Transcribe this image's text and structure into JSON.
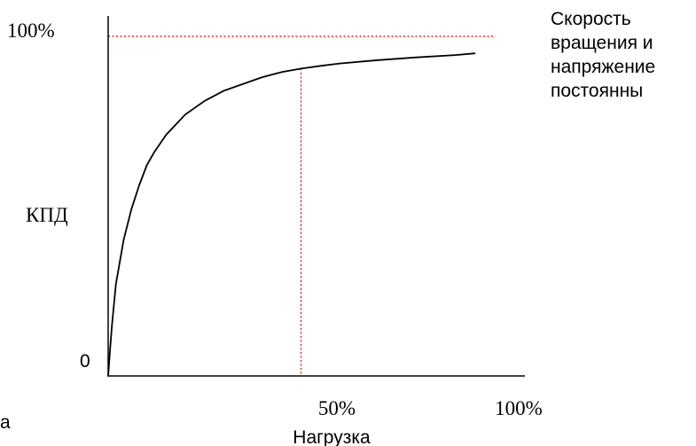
{
  "chart_data": {
    "type": "line",
    "ylabel": "КПД",
    "xlabel": "Нагрузка",
    "y_ticks": [
      {
        "label": "0",
        "value": 0
      },
      {
        "label": "100%",
        "value": 100
      }
    ],
    "x_ticks": [
      {
        "label": "50%",
        "value": 50
      },
      {
        "label": "100%",
        "value": 100
      }
    ],
    "xlim": [
      0,
      100
    ],
    "ylim": [
      0,
      100
    ],
    "series": [
      {
        "color": "#000000",
        "x": [
          0,
          0.5,
          1,
          2,
          4,
          6,
          8,
          10,
          12,
          15,
          20,
          25,
          30,
          35,
          40,
          45,
          50,
          55,
          60,
          70,
          80,
          90,
          95
        ],
        "y": [
          0,
          8,
          15,
          27,
          40,
          49,
          56,
          62,
          66,
          71,
          77,
          81,
          84,
          86,
          88,
          89.5,
          90.5,
          91.3,
          92,
          93,
          93.8,
          94.5,
          95
        ]
      }
    ],
    "reference_lines": [
      {
        "orientation": "horizontal",
        "value": 100,
        "color": "#e00000",
        "style": "dotted"
      },
      {
        "orientation": "vertical",
        "value": 50,
        "color": "#e00000",
        "style": "dotted"
      }
    ],
    "annotation": [
      "Скорость",
      "вращения и",
      "напряжение",
      "постоянны"
    ],
    "corner_label": "a",
    "grid": false
  }
}
